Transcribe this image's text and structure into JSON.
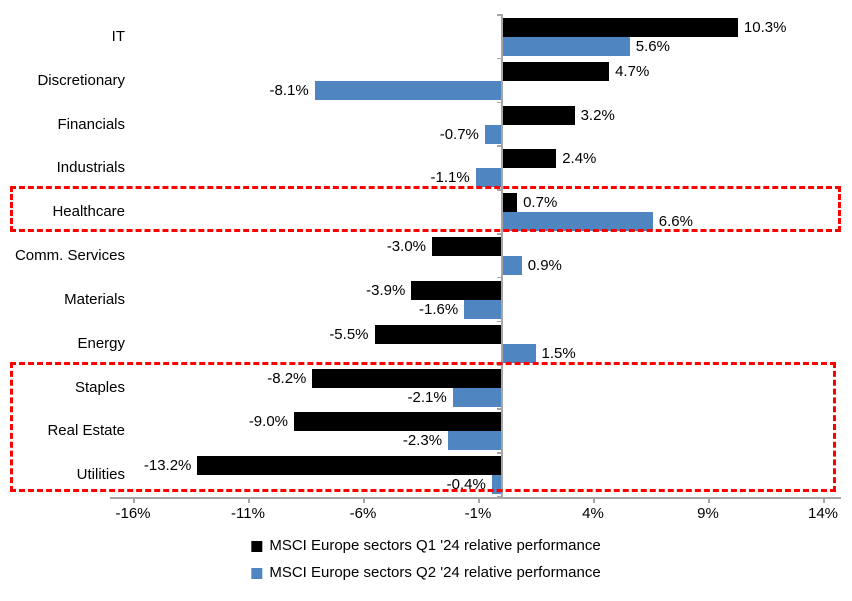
{
  "chart_data": {
    "type": "bar",
    "orientation": "horizontal",
    "title": "",
    "categories": [
      "IT",
      "Discretionary",
      "Financials",
      "Industrials",
      "Healthcare",
      "Comm. Services",
      "Materials",
      "Energy",
      "Staples",
      "Real Estate",
      "Utilities"
    ],
    "series": [
      {
        "name": "MSCI Europe sectors Q1 '24 relative performance",
        "color": "#000000",
        "values": [
          10.3,
          4.7,
          3.2,
          2.4,
          0.7,
          -3.0,
          -3.9,
          -5.5,
          -8.2,
          -9.0,
          -13.2
        ]
      },
      {
        "name": "MSCI Europe sectors Q2 '24 relative performance",
        "color": "#4F86C1",
        "values": [
          5.6,
          -8.1,
          -0.7,
          -1.1,
          6.6,
          0.9,
          -1.6,
          1.5,
          -2.1,
          -2.3,
          -0.4
        ]
      }
    ],
    "value_suffix": "%",
    "xlim": [
      -16,
      14
    ],
    "x_ticks": [
      "-16%",
      "-11%",
      "-6%",
      "-1%",
      "4%",
      "9%",
      "14%"
    ],
    "x_tick_values": [
      -16,
      -11,
      -6,
      -1,
      4,
      9,
      14
    ],
    "grid": false,
    "legend_position": "bottom",
    "annotations": [
      {
        "type": "dashed-box",
        "label": "healthcare-highlight-box",
        "categories": [
          "Healthcare"
        ],
        "color": "#FF0000"
      },
      {
        "type": "dashed-box",
        "label": "defensives-highlight-box",
        "categories": [
          "Staples",
          "Real Estate",
          "Utilities"
        ],
        "color": "#FF0000"
      }
    ]
  },
  "colors": {
    "axis": "#A6A6A6",
    "text": "#000000",
    "background": "#FFFFFF",
    "q1_bar": "#000000",
    "q2_bar": "#4F86C1",
    "highlight": "#FF0000"
  }
}
